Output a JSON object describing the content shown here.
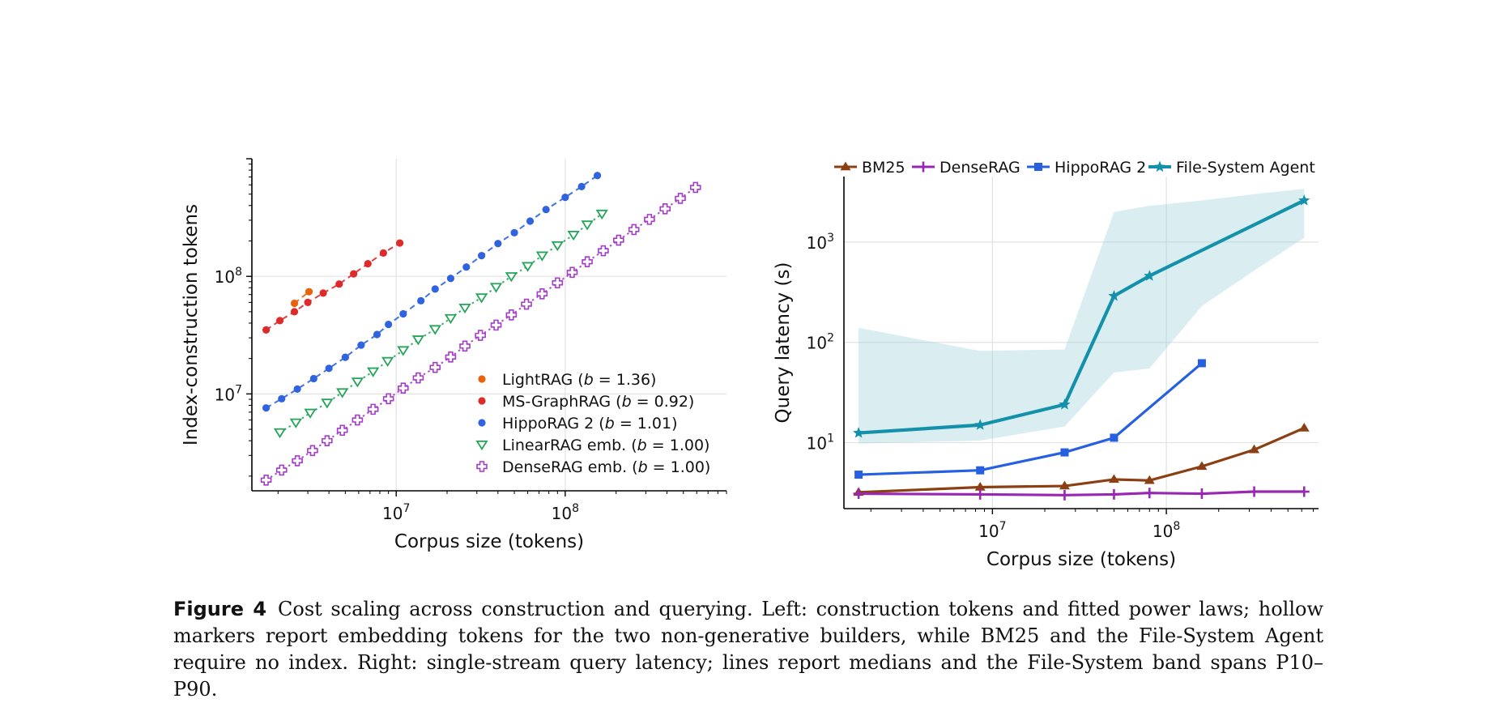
{
  "chart_data": [
    {
      "type": "scatter",
      "xlabel": "Corpus size (tokens)",
      "ylabel": "Index-construction tokens",
      "xscale": "log",
      "yscale": "log",
      "xlim": [
        1400000.0,
        900000000.0
      ],
      "ylim": [
        1500000.0,
        1000000000.0
      ],
      "xticks": [
        {
          "v": 10000000.0,
          "m": "10",
          "e": "7"
        },
        {
          "v": 100000000.0,
          "m": "10",
          "e": "8"
        }
      ],
      "yticks": [
        {
          "v": 10000000.0,
          "m": "10",
          "e": "7"
        },
        {
          "v": 100000000.0,
          "m": "10",
          "e": "8"
        }
      ],
      "grid": true,
      "legend_position": "lower-right",
      "series": [
        {
          "name": "LightRAG",
          "b": "1.36",
          "color": "#e8620c",
          "marker": "filled-circle",
          "linestyle": "dashed",
          "x": [
            2500000.0,
            3050000.0
          ],
          "y": [
            59000000.0,
            74000000.0
          ]
        },
        {
          "name": "MS-GraphRAG",
          "b": "0.92",
          "color": "#dd2a2a",
          "marker": "filled-circle",
          "linestyle": "dashed",
          "x": [
            1700000.0,
            2050000.0,
            2500000.0,
            3000000.0,
            3700000.0,
            4600000.0,
            5600000.0,
            6800000.0,
            8400000.0,
            10500000.0
          ],
          "y": [
            35000000.0,
            42000000.0,
            50000000.0,
            60000000.0,
            72000000.0,
            86000000.0,
            105000000.0,
            128000000.0,
            158000000.0,
            192000000.0
          ]
        },
        {
          "name": "HippoRAG 2",
          "b": "1.01",
          "color": "#2f63e0",
          "marker": "filled-circle",
          "linestyle": "dashed",
          "x": [
            1700000.0,
            2100000.0,
            2600000.0,
            3250000.0,
            4000000.0,
            5000000.0,
            6200000.0,
            7700000.0,
            9000000.0,
            11000000.0,
            14000000.0,
            17000000.0,
            21000000.0,
            26000000.0,
            32000000.0,
            40000000.0,
            50000000.0,
            62000000.0,
            77000000.0,
            100000000.0,
            125000000.0,
            155000000.0
          ],
          "y": [
            7600000.0,
            9100000.0,
            11000000.0,
            13500000.0,
            16500000.0,
            20500000.0,
            26000000.0,
            32000000.0,
            39000000.0,
            48000000.0,
            62000000.0,
            78000000.0,
            96000000.0,
            120000000.0,
            150000000.0,
            190000000.0,
            235000000.0,
            295000000.0,
            370000000.0,
            470000000.0,
            580000000.0,
            720000000.0
          ]
        },
        {
          "name": "LinearRAG emb.",
          "b": "1.00",
          "color": "#25a55a",
          "marker": "hollow-triangle-down",
          "linestyle": "dotted",
          "x": [
            2050000.0,
            2550000.0,
            3100000.0,
            3900000.0,
            4800000.0,
            5900000.0,
            7300000.0,
            8900000.0,
            11000000.0,
            13500000.0,
            17000000.0,
            21000000.0,
            25500000.0,
            32000000.0,
            39000000.0,
            48000000.0,
            60000000.0,
            73000000.0,
            90000000.0,
            112000000.0,
            135000000.0,
            165000000.0
          ],
          "y": [
            4700000.0,
            5700000.0,
            6900000.0,
            8400000.0,
            10300000.0,
            12700000.0,
            15500000.0,
            19000000.0,
            23500000.0,
            29000000.0,
            35500000.0,
            44000000.0,
            54000000.0,
            66000000.0,
            81000000.0,
            100000000.0,
            122000000.0,
            150000000.0,
            183000000.0,
            225000000.0,
            275000000.0,
            340000000.0
          ]
        },
        {
          "name": "DenseRAG emb.",
          "b": "1.00",
          "color": "#a43cc8",
          "marker": "hollow-plus",
          "linestyle": "dotted",
          "x": [
            1700000.0,
            2100000.0,
            2600000.0,
            3200000.0,
            3900000.0,
            4800000.0,
            5900000.0,
            7300000.0,
            9000000.0,
            11000000.0,
            13500000.0,
            17000000.0,
            21000000.0,
            25500000.0,
            31500000.0,
            39000000.0,
            48000000.0,
            59000000.0,
            73000000.0,
            90000000.0,
            110000000.0,
            135000000.0,
            168000000.0,
            207000000.0,
            255000000.0,
            315000000.0,
            390000000.0,
            480000000.0,
            590000000.0
          ],
          "y": [
            1850000.0,
            2250000.0,
            2700000.0,
            3300000.0,
            4000000.0,
            4900000.0,
            6000000.0,
            7400000.0,
            9100000.0,
            11200000.0,
            13700000.0,
            16800000.0,
            20600000.0,
            25500000.0,
            31500000.0,
            38500000.0,
            47000000.0,
            58000000.0,
            71000000.0,
            88000000.0,
            108000000.0,
            133000000.0,
            165000000.0,
            203000000.0,
            250000000.0,
            305000000.0,
            375000000.0,
            460000000.0,
            570000000.0
          ]
        }
      ]
    },
    {
      "type": "line",
      "xlabel": "Corpus size (tokens)",
      "ylabel": "Query latency (s)",
      "xscale": "log",
      "yscale": "log",
      "xlim": [
        1400000.0,
        750000000.0
      ],
      "ylim": [
        2.2,
        4500
      ],
      "xticks": [
        {
          "v": 10000000.0,
          "m": "10",
          "e": "7"
        },
        {
          "v": 100000000.0,
          "m": "10",
          "e": "8"
        }
      ],
      "yticks": [
        {
          "v": 10,
          "m": "10",
          "e": "1"
        },
        {
          "v": 100,
          "m": "10",
          "e": "2"
        },
        {
          "v": 1000,
          "m": "10",
          "e": "3"
        }
      ],
      "grid": true,
      "legend_position": "top",
      "series": [
        {
          "name": "BM25",
          "color": "#8b3f12",
          "marker": "triangle",
          "x": [
            1700000.0,
            8500000.0,
            26000000.0,
            50000000.0,
            80000000.0,
            160000000.0,
            320000000.0,
            620000000.0
          ],
          "y": [
            3.2,
            3.6,
            3.7,
            4.3,
            4.2,
            5.8,
            8.5,
            14
          ]
        },
        {
          "name": "DenseRAG",
          "color": "#9a27b3",
          "marker": "plus",
          "x": [
            1700000.0,
            8500000.0,
            26000000.0,
            50000000.0,
            80000000.0,
            160000000.0,
            320000000.0,
            620000000.0
          ],
          "y": [
            3.1,
            3.05,
            3.0,
            3.05,
            3.15,
            3.1,
            3.25,
            3.25
          ]
        },
        {
          "name": "HippoRAG 2",
          "color": "#2460e0",
          "marker": "square",
          "x": [
            1700000.0,
            8500000.0,
            26000000.0,
            50000000.0,
            160000000.0
          ],
          "y": [
            4.8,
            5.3,
            8.0,
            11.2,
            62
          ]
        },
        {
          "name": "File-System Agent",
          "color": "#1391ab",
          "marker": "star",
          "x": [
            1700000.0,
            8500000.0,
            26000000.0,
            50000000.0,
            80000000.0,
            620000000.0
          ],
          "y": [
            12.5,
            15,
            24,
            290,
            460,
            2600
          ],
          "band": {
            "color": "#9fd2de",
            "x": [
              1700000.0,
              8500000.0,
              26000000.0,
              50000000.0,
              80000000.0,
              160000000.0,
              320000000.0,
              620000000.0
            ],
            "lo": [
              9.8,
              10.5,
              14.5,
              50,
              55,
              230,
              520,
              1100
            ],
            "hi": [
              140,
              82,
              85,
              2000,
              2300,
              2600,
              3000,
              3400
            ]
          }
        }
      ]
    }
  ],
  "caption": {
    "label": "Figure 4",
    "text": "Cost scaling across construction and querying. Left: construction tokens and fitted power laws; hollow markers report embedding tokens for the two non-generative builders, while BM25 and the File-System Agent require no index. Right: single-stream query latency; lines report medians and the File-System band spans P10–P90."
  }
}
